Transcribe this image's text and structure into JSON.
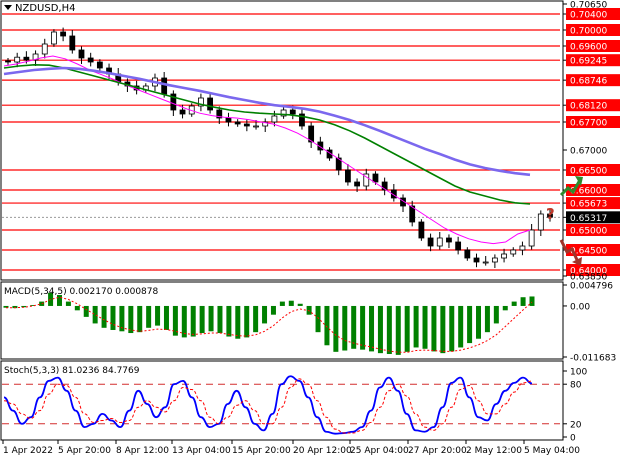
{
  "header": {
    "symbol_timeframe": "NZDUSD,H4"
  },
  "colors": {
    "candle": "#000000",
    "ma_fast": "#ff00ff",
    "ma_mid": "#008000",
    "ma_slow": "#7b68ee",
    "level_line": "#ff0000",
    "current_price_bg": "#000000",
    "macd_hist": "#008000",
    "macd_signal": "#ff0000",
    "stoch_main": "#0000ff",
    "stoch_signal": "#ff0000",
    "arrow_up": "#2e8b2e",
    "arrow_down": "#a0342a",
    "question": "#c0392b"
  },
  "price_panel": {
    "ylim": [
      0.6385,
      0.7065
    ],
    "axis_ticks": [
      "0.70650",
      "0.70400",
      "0.70000",
      "0.69600",
      "0.69245",
      "0.68746",
      "0.68120",
      "0.67700",
      "0.67000",
      "0.66500",
      "0.66000",
      "0.65673",
      "0.65317",
      "0.65000",
      "0.64500",
      "0.64000",
      "0.63850"
    ],
    "tick_values": [
      0.7065,
      0.704,
      0.7,
      0.696,
      0.69245,
      0.68746,
      0.6812,
      0.677,
      0.67,
      0.665,
      0.66,
      0.65673,
      0.65317,
      0.65,
      0.645,
      0.64,
      0.6385
    ],
    "support_resistance_levels": [
      0.704,
      0.7,
      0.696,
      0.69245,
      0.68746,
      0.6812,
      0.677,
      0.665,
      0.66,
      0.65673,
      0.65,
      0.645,
      0.64
    ],
    "highlighted_levels": [
      "0.70400",
      "0.70000",
      "0.69600",
      "0.69245",
      "0.68746",
      "0.68120",
      "0.67700",
      "0.66500",
      "0.66000",
      "0.65673",
      "0.65000",
      "0.64500",
      "0.64000"
    ],
    "current_price": "0.65317",
    "annotation_question": "?",
    "arrows": [
      "up",
      "down"
    ]
  },
  "macd_panel": {
    "title": "MACD(5,34,5) 0.002170 0.000878",
    "ylim": [
      -0.011683,
      0.004796
    ],
    "axis_ticks": [
      "0.004796",
      "0.00",
      "-0.011683"
    ]
  },
  "stoch_panel": {
    "title": "Stoch(5,3,3) 81.0236 84.7769",
    "ylim": [
      0,
      100
    ],
    "axis_ticks": [
      "100",
      "80",
      "20",
      "0"
    ],
    "levels": [
      80,
      20
    ]
  },
  "x_axis": {
    "labels": [
      "1 Apr 2022",
      "5 Apr 20:00",
      "8 Apr 12:00",
      "13 Apr 04:00",
      "15 Apr 20:00",
      "20 Apr 12:00",
      "25 Apr 04:00",
      "27 Apr 20:00",
      "2 May 12:00",
      "5 May 04:00"
    ]
  },
  "chart_data": [
    {
      "type": "candlestick",
      "title": "NZDUSD,H4",
      "x_labels": [
        "1 Apr 2022",
        "5 Apr 20:00",
        "8 Apr 12:00",
        "13 Apr 04:00",
        "15 Apr 20:00",
        "20 Apr 12:00",
        "25 Apr 04:00",
        "27 Apr 20:00",
        "2 May 12:00",
        "5 May 04:00"
      ],
      "close_approx": [
        0.692,
        0.6932,
        0.6925,
        0.694,
        0.6965,
        0.6995,
        0.6985,
        0.695,
        0.693,
        0.692,
        0.6905,
        0.689,
        0.687,
        0.686,
        0.685,
        0.686,
        0.688,
        0.684,
        0.68,
        0.679,
        0.681,
        0.683,
        0.68,
        0.678,
        0.677,
        0.6765,
        0.676,
        0.676,
        0.677,
        0.6785,
        0.68,
        0.679,
        0.676,
        0.672,
        0.67,
        0.668,
        0.665,
        0.662,
        0.661,
        0.664,
        0.662,
        0.66,
        0.658,
        0.656,
        0.652,
        0.648,
        0.646,
        0.648,
        0.647,
        0.645,
        0.643,
        0.642,
        0.642,
        0.643,
        0.644,
        0.645,
        0.646,
        0.65,
        0.654,
        0.6532
      ],
      "series": [
        {
          "name": "MA fast",
          "values": [
            0.691,
            0.6915,
            0.6922,
            0.693,
            0.6935,
            0.6928,
            0.6915,
            0.69,
            0.6888,
            0.6876,
            0.6862,
            0.685,
            0.6838,
            0.6826,
            0.6814,
            0.6802,
            0.6792,
            0.6786,
            0.6782,
            0.678,
            0.6776,
            0.677,
            0.6765,
            0.6755,
            0.6742,
            0.6725,
            0.6705,
            0.6685,
            0.6665,
            0.6645,
            0.6625,
            0.6605,
            0.6585,
            0.6565,
            0.6545,
            0.6525,
            0.6505,
            0.649,
            0.6478,
            0.647,
            0.6466,
            0.647,
            0.649,
            0.65
          ]
        },
        {
          "name": "MA mid",
          "values": [
            0.6905,
            0.691,
            0.6913,
            0.6912,
            0.6905,
            0.6895,
            0.6885,
            0.6875,
            0.6865,
            0.6855,
            0.6845,
            0.6835,
            0.6825,
            0.6815,
            0.6807,
            0.68,
            0.6795,
            0.6792,
            0.679,
            0.6788,
            0.6783,
            0.6775,
            0.6763,
            0.6748,
            0.673,
            0.671,
            0.669,
            0.667,
            0.665,
            0.663,
            0.661,
            0.6595,
            0.6585,
            0.6575,
            0.6568,
            0.6565
          ]
        },
        {
          "name": "MA slow",
          "values": [
            0.689,
            0.6895,
            0.69,
            0.6903,
            0.6905,
            0.6903,
            0.6898,
            0.6892,
            0.6885,
            0.6878,
            0.687,
            0.6862,
            0.6855,
            0.6848,
            0.684,
            0.6832,
            0.6825,
            0.6818,
            0.6812,
            0.6808,
            0.6803,
            0.6796,
            0.6786,
            0.6775,
            0.6762,
            0.6748,
            0.6733,
            0.6718,
            0.6703,
            0.669,
            0.6676,
            0.6664,
            0.6655,
            0.6648,
            0.6642,
            0.6638
          ]
        }
      ]
    },
    {
      "type": "bar",
      "title": "MACD(5,34,5) 0.002170 0.000878",
      "values": [
        -0.0004,
        -0.0005,
        -0.0003,
        0.0002,
        0.001,
        0.003,
        0.0025,
        0.001,
        -0.001,
        -0.0025,
        -0.004,
        -0.005,
        -0.0055,
        -0.0058,
        -0.0062,
        -0.006,
        -0.005,
        -0.0045,
        -0.0055,
        -0.0068,
        -0.0072,
        -0.007,
        -0.0062,
        -0.0058,
        -0.0062,
        -0.007,
        -0.0075,
        -0.0072,
        -0.006,
        -0.004,
        -0.002,
        0.001,
        0.0012,
        0.0005,
        -0.002,
        -0.006,
        -0.009,
        -0.0105,
        -0.0102,
        -0.0098,
        -0.01,
        -0.0104,
        -0.0108,
        -0.011,
        -0.0112,
        -0.0105,
        -0.0095,
        -0.0098,
        -0.0104,
        -0.0108,
        -0.0104,
        -0.0095,
        -0.0085,
        -0.0075,
        -0.006,
        -0.004,
        -0.001,
        0.001,
        0.002,
        0.00217
      ],
      "signal": [
        -0.0004,
        -0.0004,
        -0.0003,
        0.0,
        0.0005,
        0.0015,
        0.002,
        0.0015,
        0.0005,
        -0.0008,
        -0.002,
        -0.0032,
        -0.0042,
        -0.005,
        -0.0055,
        -0.0058,
        -0.0056,
        -0.0053,
        -0.0054,
        -0.0058,
        -0.0063,
        -0.0065,
        -0.0064,
        -0.0062,
        -0.0062,
        -0.0065,
        -0.0068,
        -0.0069,
        -0.0066,
        -0.0058,
        -0.0045,
        -0.0027,
        -0.0013,
        -0.0007,
        -0.0011,
        -0.0027,
        -0.0048,
        -0.0067,
        -0.0079,
        -0.0085,
        -0.009,
        -0.0094,
        -0.0099,
        -0.0103,
        -0.0106,
        -0.0106,
        -0.0102,
        -0.0101,
        -0.0102,
        -0.0104,
        -0.0104,
        -0.0101,
        -0.0096,
        -0.0089,
        -0.0079,
        -0.0066,
        -0.0047,
        -0.0028,
        -0.0009,
        0.000878
      ]
    },
    {
      "type": "line",
      "title": "Stoch(5,3,3) 81.0236 84.7769",
      "series": [
        {
          "name": "Stoch main",
          "values": [
            60,
            40,
            20,
            30,
            60,
            85,
            90,
            70,
            40,
            15,
            20,
            35,
            25,
            15,
            40,
            70,
            50,
            30,
            45,
            80,
            85,
            60,
            30,
            15,
            20,
            50,
            70,
            45,
            20,
            10,
            35,
            80,
            92,
            85,
            60,
            30,
            8,
            5,
            6,
            8,
            15,
            40,
            75,
            90,
            70,
            35,
            10,
            8,
            15,
            45,
            82,
            90,
            60,
            30,
            25,
            50,
            70,
            82,
            90,
            81.0236
          ]
        },
        {
          "name": "Stoch signal",
          "values": [
            55,
            50,
            35,
            28,
            40,
            65,
            80,
            78,
            60,
            35,
            22,
            25,
            28,
            22,
            25,
            45,
            55,
            45,
            38,
            55,
            75,
            72,
            55,
            30,
            20,
            30,
            48,
            55,
            40,
            20,
            20,
            45,
            75,
            88,
            80,
            55,
            30,
            12,
            6,
            6,
            10,
            22,
            45,
            70,
            80,
            62,
            35,
            15,
            10,
            20,
            45,
            72,
            78,
            55,
            35,
            35,
            50,
            68,
            82,
            84.7769
          ]
        }
      ]
    }
  ]
}
